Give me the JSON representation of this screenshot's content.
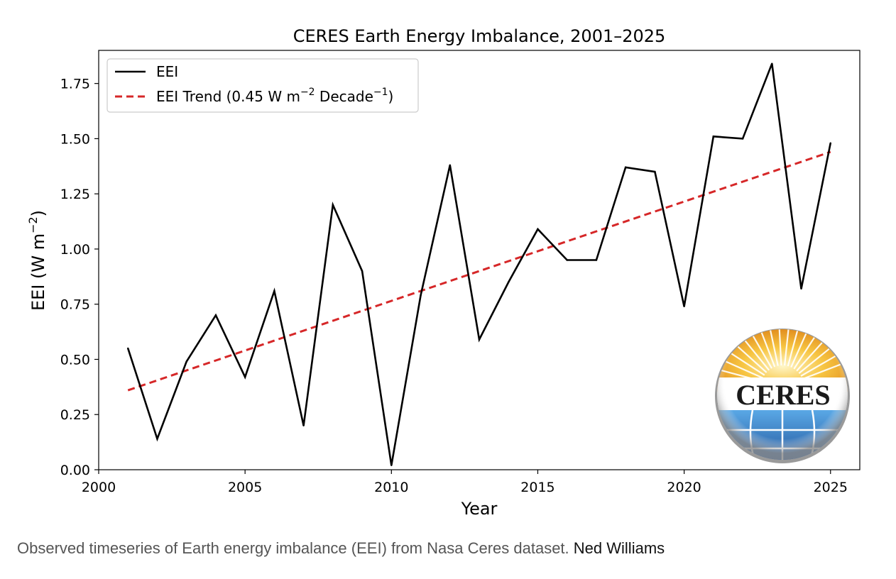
{
  "chart_data": {
    "type": "line",
    "title": "CERES Earth Energy Imbalance, 2001–2025",
    "xlabel": "Year",
    "ylabel_main": "EEI (W m",
    "ylabel_sup": "−2",
    "ylabel_close": ")",
    "xlim": [
      2000,
      2026
    ],
    "ylim": [
      0,
      1.9
    ],
    "xticks": [
      2000,
      2005,
      2010,
      2015,
      2020,
      2025
    ],
    "yticks": [
      0.0,
      0.25,
      0.5,
      0.75,
      1.0,
      1.25,
      1.5,
      1.75
    ],
    "grid": false,
    "legend_position": "top-left",
    "series": [
      {
        "name": "EEI",
        "style": "solid",
        "color": "#000000",
        "x": [
          2001,
          2002,
          2003,
          2004,
          2005,
          2006,
          2007,
          2008,
          2009,
          2010,
          2011,
          2012,
          2013,
          2014,
          2015,
          2016,
          2017,
          2018,
          2019,
          2020,
          2021,
          2022,
          2023,
          2024,
          2025
        ],
        "values": [
          0.55,
          0.14,
          0.49,
          0.7,
          0.42,
          0.81,
          0.2,
          1.2,
          0.9,
          0.02,
          0.79,
          1.38,
          0.59,
          0.85,
          1.09,
          0.95,
          0.95,
          1.37,
          1.35,
          0.74,
          1.51,
          1.5,
          1.84,
          0.82,
          1.48
        ]
      },
      {
        "name_main": "EEI Trend (0.45 W m",
        "name_sup1": "−2",
        "name_mid": " Decade",
        "name_sup2": "−1",
        "name_close": ")",
        "style": "dashed",
        "color": "#d62728",
        "x": [
          2001,
          2025
        ],
        "values": [
          0.36,
          1.44
        ]
      }
    ],
    "logo_text": "CERES"
  },
  "caption": {
    "text": "Observed timeseries of Earth energy imbalance (EEI) from Nasa Ceres dataset.",
    "credit": "Ned Williams"
  }
}
